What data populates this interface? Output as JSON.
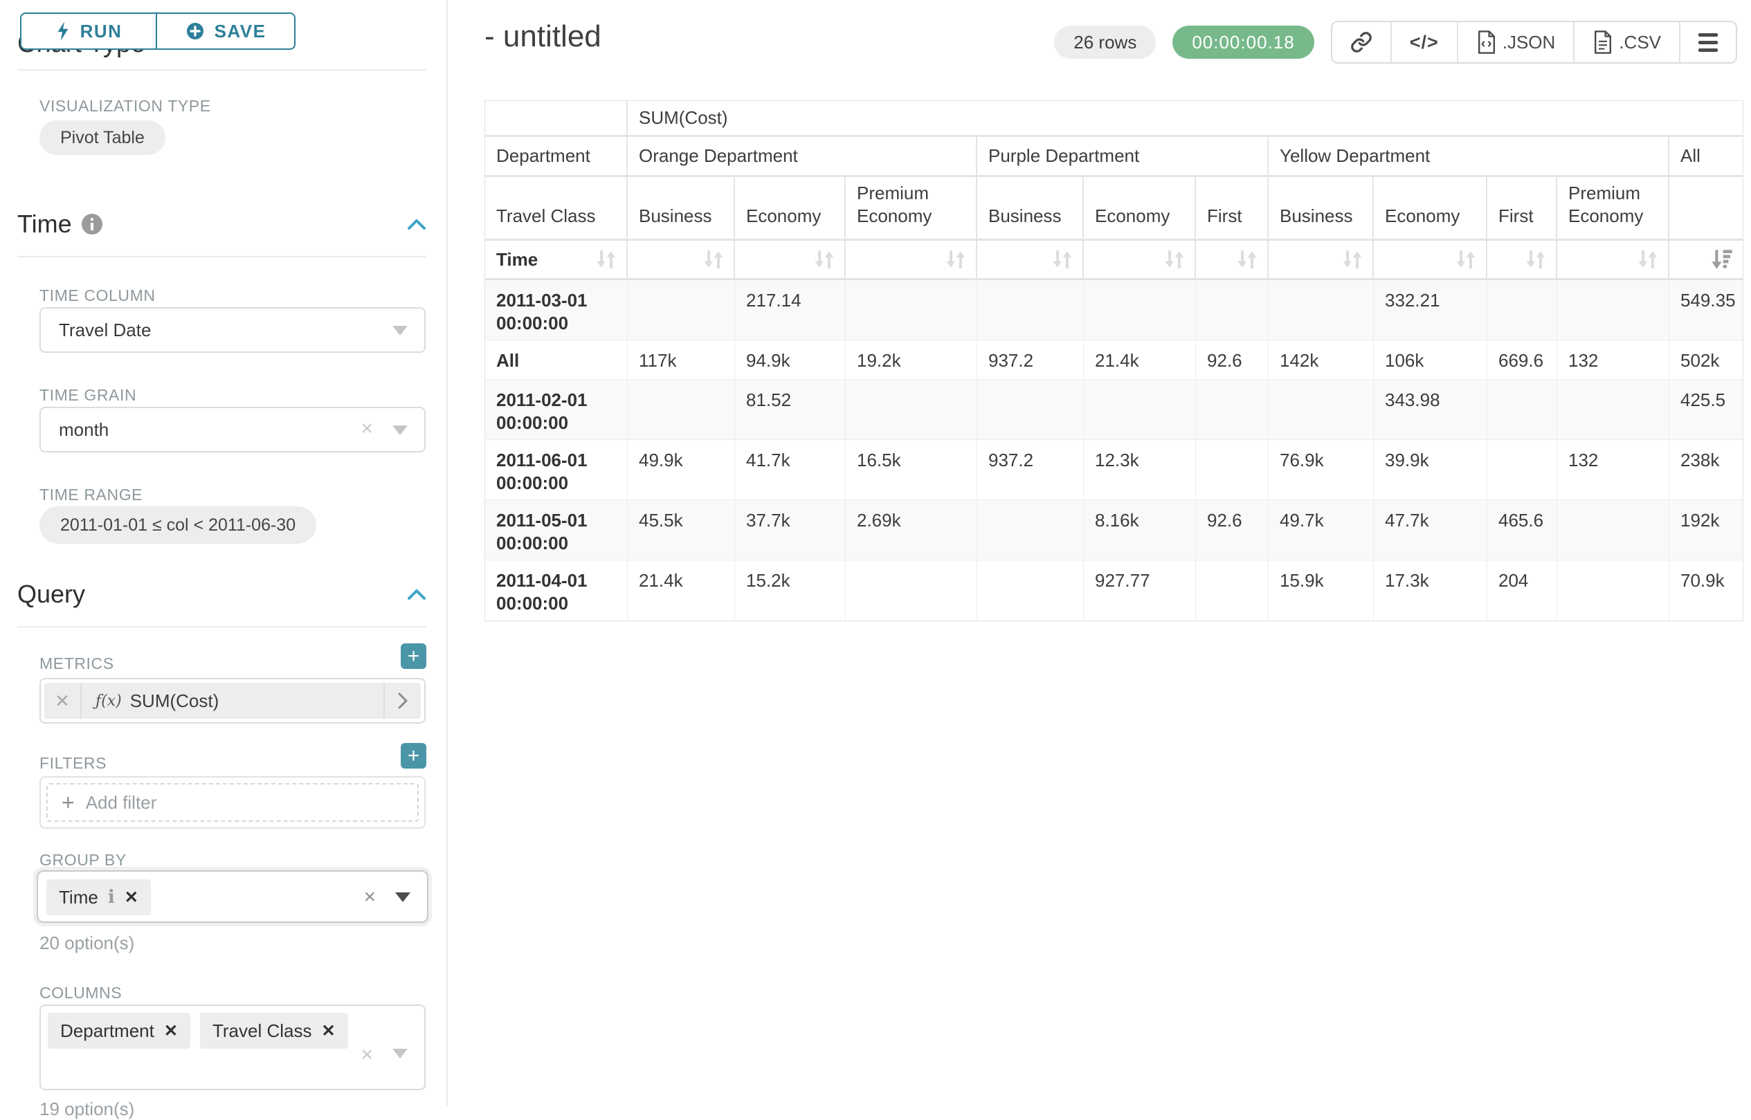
{
  "toolbar": {
    "run": "RUN",
    "save": "SAVE"
  },
  "panel": {
    "scrolled_section_title": "Chart Type",
    "viz_label": "VISUALIZATION TYPE",
    "viz_value": "Pivot Table",
    "time": {
      "title": "Time",
      "time_column_label": "TIME COLUMN",
      "time_column_value": "Travel Date",
      "time_grain_label": "TIME GRAIN",
      "time_grain_value": "month",
      "time_range_label": "TIME RANGE",
      "time_range_value": "2011-01-01 ≤ col < 2011-06-30"
    },
    "query": {
      "title": "Query",
      "metrics_label": "METRICS",
      "metric_fx": "ƒ(x)",
      "metric_value": "SUM(Cost)",
      "filters_label": "FILTERS",
      "add_filter_label": "Add filter",
      "groupby_label": "GROUP BY",
      "groupby_value": "Time",
      "groupby_options": "20 option(s)",
      "columns_label": "COLUMNS",
      "columns_values": [
        "Department",
        "Travel Class"
      ],
      "columns_options": "19 option(s)"
    }
  },
  "header": {
    "title": "- untitled",
    "rows_badge": "26 rows",
    "timer": "00:00:00.18",
    "export_json": ".JSON",
    "export_csv": ".CSV"
  },
  "colors": {
    "accent_teal": "#2c7f98",
    "plus_button_teal": "#4a96a8",
    "timer_green": "#77b98a"
  },
  "chart_data": {
    "type": "table",
    "title": "SUM(Cost)",
    "corner_labels": {
      "col_level0": "Department",
      "col_level1": "Travel Class",
      "row_level": "Time"
    },
    "column_groups": [
      {
        "label": "Orange Department",
        "children": [
          "Business",
          "Economy",
          "Premium Economy"
        ]
      },
      {
        "label": "Purple Department",
        "children": [
          "Business",
          "Economy",
          "First"
        ]
      },
      {
        "label": "Yellow Department",
        "children": [
          "Business",
          "Economy",
          "First",
          "Premium Economy"
        ]
      },
      {
        "label": "All",
        "children": [
          ""
        ]
      }
    ],
    "sorted_column": "All",
    "sort_direction": "desc",
    "rows": [
      {
        "label": "2011-03-01 00:00:00",
        "values": [
          "",
          "217.14",
          "",
          "",
          "",
          "",
          "",
          "332.21",
          "",
          "",
          "549.35"
        ]
      },
      {
        "label": "All",
        "values": [
          "117k",
          "94.9k",
          "19.2k",
          "937.2",
          "21.4k",
          "92.6",
          "142k",
          "106k",
          "669.6",
          "132",
          "502k"
        ]
      },
      {
        "label": "2011-02-01 00:00:00",
        "values": [
          "",
          "81.52",
          "",
          "",
          "",
          "",
          "",
          "343.98",
          "",
          "",
          "425.5"
        ]
      },
      {
        "label": "2011-06-01 00:00:00",
        "values": [
          "49.9k",
          "41.7k",
          "16.5k",
          "937.2",
          "12.3k",
          "",
          "76.9k",
          "39.9k",
          "",
          "132",
          "238k"
        ]
      },
      {
        "label": "2011-05-01 00:00:00",
        "values": [
          "45.5k",
          "37.7k",
          "2.69k",
          "",
          "8.16k",
          "92.6",
          "49.7k",
          "47.7k",
          "465.6",
          "",
          "192k"
        ]
      },
      {
        "label": "2011-04-01 00:00:00",
        "values": [
          "21.4k",
          "15.2k",
          "",
          "",
          "927.77",
          "",
          "15.9k",
          "17.3k",
          "204",
          "",
          "70.9k"
        ]
      }
    ]
  }
}
